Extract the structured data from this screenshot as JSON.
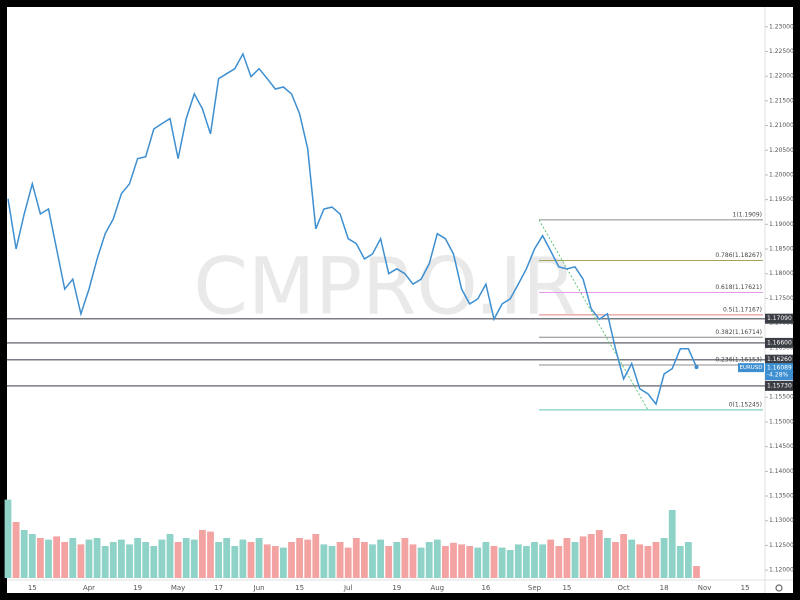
{
  "chart_data": {
    "type": "line",
    "watermark": "CMPRO.IR",
    "categories": [
      null,
      null,
      null,
      "15",
      null,
      null,
      null,
      null,
      null,
      null,
      "Apr",
      null,
      null,
      null,
      null,
      null,
      "19",
      null,
      null,
      null,
      null,
      "May",
      null,
      null,
      null,
      null,
      "17",
      null,
      null,
      null,
      null,
      "Jun",
      null,
      null,
      null,
      null,
      "15",
      null,
      null,
      null,
      null,
      null,
      "Jul",
      null,
      null,
      null,
      null,
      null,
      "19",
      null,
      null,
      null,
      null,
      "Aug",
      null,
      null,
      null,
      null,
      null,
      "16",
      null,
      null,
      null,
      null,
      null,
      "Sep",
      null,
      null,
      null,
      "15",
      null,
      null,
      null,
      null,
      null,
      null,
      "Oct",
      null,
      null,
      null,
      null,
      "18",
      null,
      null,
      null,
      null,
      "Nov",
      null,
      null,
      null,
      null,
      "15",
      null,
      null
    ],
    "series": [
      {
        "name": "EURUSD",
        "color": "#3d8fd1",
        "values": [
          1.1952,
          1.185,
          1.1921,
          1.1982,
          1.1921,
          1.1931,
          1.185,
          1.1769,
          1.1789,
          1.1719,
          1.1769,
          1.183,
          1.1881,
          1.1911,
          1.1962,
          1.1982,
          1.2033,
          1.2037,
          1.2093,
          1.2104,
          1.2114,
          1.2033,
          1.2114,
          1.2164,
          1.2134,
          1.2083,
          1.2195,
          1.2205,
          1.2215,
          1.2245,
          1.2199,
          1.2215,
          1.2195,
          1.2174,
          1.2178,
          1.2164,
          1.2124,
          1.2053,
          1.1891,
          1.1931,
          1.1935,
          1.1921,
          1.1871,
          1.1861,
          1.183,
          1.184,
          1.1871,
          1.18,
          1.181,
          1.18,
          1.1779,
          1.1789,
          1.182,
          1.1881,
          1.1871,
          1.184,
          1.1769,
          1.1739,
          1.1749,
          1.1779,
          1.1708,
          1.1739,
          1.1749,
          1.1779,
          1.181,
          1.185,
          1.1877,
          1.1846,
          1.1814,
          1.181,
          1.1814,
          1.1789,
          1.1729,
          1.1708,
          1.1719,
          1.1648,
          1.1587,
          1.1618,
          1.1567,
          1.1557,
          1.1536,
          1.1597,
          1.1608,
          1.1648,
          1.1648,
          1.1611,
          null,
          null,
          null,
          null,
          null,
          null,
          null,
          null
        ]
      }
    ],
    "volume": {
      "values": [
        98,
        70,
        60,
        55,
        50,
        48,
        52,
        45,
        50,
        42,
        48,
        50,
        40,
        45,
        48,
        42,
        50,
        45,
        40,
        48,
        55,
        45,
        50,
        48,
        60,
        58,
        45,
        50,
        40,
        48,
        45,
        50,
        42,
        40,
        38,
        45,
        50,
        48,
        55,
        42,
        40,
        45,
        38,
        50,
        45,
        42,
        48,
        40,
        45,
        50,
        42,
        38,
        45,
        48,
        40,
        44,
        42,
        40,
        38,
        45,
        40,
        38,
        35,
        42,
        40,
        45,
        42,
        48,
        40,
        50,
        45,
        52,
        55,
        60,
        50,
        45,
        55,
        48,
        42,
        40,
        45,
        50,
        85,
        40,
        45,
        15,
        null,
        null,
        null,
        null,
        null,
        null,
        null,
        null
      ],
      "up_color": "#8fd3c8",
      "down_color": "#f4a3a3"
    },
    "ylim": [
      1.118,
      1.234
    ],
    "yticks": [
      {
        "value": 1.12,
        "label": "1.12000"
      },
      {
        "value": 1.125,
        "label": "1.12500"
      },
      {
        "value": 1.13,
        "label": "1.13000"
      },
      {
        "value": 1.135,
        "label": "1.13500"
      },
      {
        "value": 1.14,
        "label": "1.14000"
      },
      {
        "value": 1.145,
        "label": "1.14500"
      },
      {
        "value": 1.15,
        "label": "1.15000"
      },
      {
        "value": 1.155,
        "label": "1.15500"
      },
      {
        "value": 1.16,
        "label": "1.16000"
      },
      {
        "value": 1.165,
        "label": "1.16500"
      },
      {
        "value": 1.17,
        "label": "1.17000"
      },
      {
        "value": 1.175,
        "label": "1.17500"
      },
      {
        "value": 1.18,
        "label": "1.18000"
      },
      {
        "value": 1.185,
        "label": "1.18500"
      },
      {
        "value": 1.19,
        "label": "1.19000"
      },
      {
        "value": 1.195,
        "label": "1.19500"
      },
      {
        "value": 1.2,
        "label": "1.20000"
      },
      {
        "value": 1.205,
        "label": "1.20500"
      },
      {
        "value": 1.21,
        "label": "1.21000"
      },
      {
        "value": 1.215,
        "label": "1.21500"
      },
      {
        "value": 1.22,
        "label": "1.22000"
      },
      {
        "value": 1.225,
        "label": "1.22500"
      },
      {
        "value": 1.23,
        "label": "1.23000"
      }
    ],
    "levels": [
      {
        "value": 1.1709,
        "label": "1.17090"
      },
      {
        "value": 1.166,
        "label": "1.16600"
      },
      {
        "value": 1.1626,
        "label": "1.16260"
      },
      {
        "value": 1.1573,
        "label": "1.15730"
      }
    ],
    "level_color": "#7a7d85",
    "fib": [
      {
        "value": 1.1909,
        "label": "1(1.1909)",
        "color": "#8c8c8c"
      },
      {
        "value": 1.18267,
        "label": "0.786(1.18267)",
        "color": "#a3a35a"
      },
      {
        "value": 1.17621,
        "label": "0.618(1.17621)",
        "color": "#e59be5"
      },
      {
        "value": 1.17167,
        "label": "0.5(1.17167)",
        "color": "#e08080"
      },
      {
        "value": 1.16714,
        "label": "0.382(1.16714)",
        "color": "#8c8c8c"
      },
      {
        "value": 1.16153,
        "label": "0.236(1.16153)",
        "color": "#8c8c8c"
      },
      {
        "value": 1.15245,
        "label": "0(1.15245)",
        "color": "#5fc4b0"
      }
    ],
    "last_price": {
      "value": 1.16089,
      "label": "1.16089"
    },
    "change": {
      "value": -4.28,
      "label": "-4.28%"
    }
  }
}
